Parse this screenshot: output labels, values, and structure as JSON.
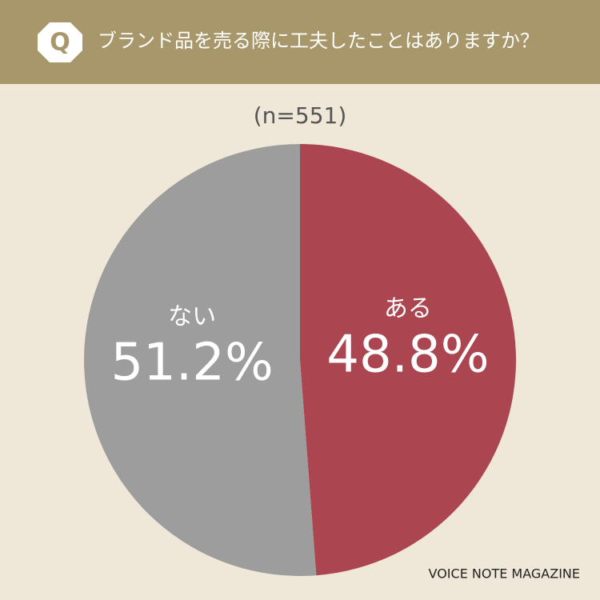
{
  "badge": "Q",
  "chart_data": {
    "type": "pie",
    "title": "ブランド品を売る際に工夫したことはありますか？",
    "subtitle": "(n=551)",
    "categories": [
      "ある",
      "ない"
    ],
    "values": [
      48.8,
      51.2
    ],
    "value_labels": [
      "48.8%",
      "51.2%"
    ],
    "colors": [
      "#ab4550",
      "#9d9d9d"
    ],
    "source": "VOICE NOTE MAGAZINE"
  }
}
